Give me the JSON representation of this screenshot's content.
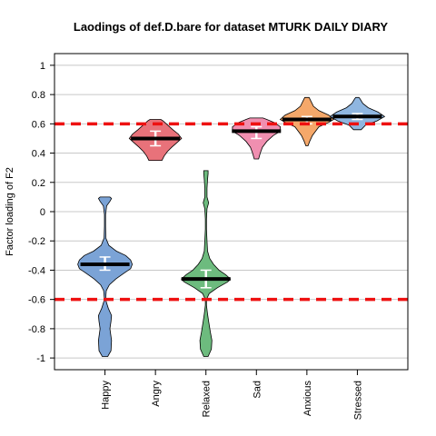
{
  "chart_data": {
    "type": "violin",
    "title": "Laodings of def.D.bare for dataset MTURK DAILY DIARY",
    "xlabel": "",
    "ylabel": "Factor loading of F2",
    "ylim": [
      -1.08,
      1.08
    ],
    "yticks": [
      "-1",
      "-0.8",
      "-0.6",
      "-0.4",
      "-0.2",
      "0",
      "0.2",
      "0.4",
      "0.6",
      "0.8",
      "1"
    ],
    "grid": true,
    "reference_lines": [
      0.6,
      -0.6
    ],
    "reference_line_color": "#ee1111",
    "categories": [
      "Happy",
      "Angry",
      "Relaxed",
      "Sad",
      "Anxious",
      "Stressed"
    ],
    "series": [
      {
        "category": "Happy",
        "color": "#7ba3d6",
        "median": -0.36,
        "q1": -0.4,
        "q3": -0.31,
        "min": -0.99,
        "max": 0.1,
        "profile": [
          [
            -0.99,
            0.25
          ],
          [
            -0.95,
            0.55
          ],
          [
            -0.88,
            0.6
          ],
          [
            -0.8,
            0.45
          ],
          [
            -0.75,
            0.55
          ],
          [
            -0.71,
            0.6
          ],
          [
            -0.66,
            0.3
          ],
          [
            -0.6,
            0.05
          ],
          [
            -0.54,
            0.12
          ],
          [
            -0.5,
            0.4
          ],
          [
            -0.46,
            1.0
          ],
          [
            -0.42,
            1.75
          ],
          [
            -0.39,
            2.35
          ],
          [
            -0.36,
            2.5
          ],
          [
            -0.33,
            2.35
          ],
          [
            -0.3,
            1.9
          ],
          [
            -0.27,
            1.05
          ],
          [
            -0.23,
            0.35
          ],
          [
            -0.18,
            0.08
          ],
          [
            -0.1,
            0.05
          ],
          [
            -0.02,
            0.05
          ],
          [
            0.04,
            0.15
          ],
          [
            0.07,
            0.45
          ],
          [
            0.09,
            0.6
          ],
          [
            0.1,
            0.45
          ]
        ]
      },
      {
        "category": "Angry",
        "color": "#e8727a",
        "median": 0.5,
        "q1": 0.45,
        "q3": 0.55,
        "min": 0.35,
        "max": 0.63,
        "profile": [
          [
            0.35,
            0.6
          ],
          [
            0.38,
            0.8
          ],
          [
            0.41,
            1.1
          ],
          [
            0.44,
            1.5
          ],
          [
            0.47,
            1.95
          ],
          [
            0.5,
            2.4
          ],
          [
            0.53,
            2.1
          ],
          [
            0.56,
            1.6
          ],
          [
            0.59,
            1.15
          ],
          [
            0.62,
            0.7
          ],
          [
            0.63,
            0.5
          ]
        ]
      },
      {
        "category": "Relaxed",
        "color": "#6dbb7e",
        "median": -0.46,
        "q1": -0.52,
        "q3": -0.4,
        "min": -0.99,
        "max": 0.28,
        "profile": [
          [
            -0.99,
            0.2
          ],
          [
            -0.94,
            0.5
          ],
          [
            -0.88,
            0.55
          ],
          [
            -0.82,
            0.4
          ],
          [
            -0.75,
            0.25
          ],
          [
            -0.7,
            0.15
          ],
          [
            -0.64,
            0.05
          ],
          [
            -0.6,
            0.05
          ],
          [
            -0.56,
            0.3
          ],
          [
            -0.52,
            1.05
          ],
          [
            -0.48,
            2.0
          ],
          [
            -0.46,
            2.25
          ],
          [
            -0.43,
            1.8
          ],
          [
            -0.4,
            1.2
          ],
          [
            -0.36,
            0.7
          ],
          [
            -0.32,
            0.35
          ],
          [
            -0.27,
            0.15
          ],
          [
            -0.2,
            0.1
          ],
          [
            -0.12,
            0.05
          ],
          [
            -0.05,
            0.05
          ],
          [
            0.02,
            0.1
          ],
          [
            0.06,
            0.25
          ],
          [
            0.1,
            0.1
          ],
          [
            0.16,
            0.1
          ],
          [
            0.22,
            0.15
          ],
          [
            0.26,
            0.2
          ],
          [
            0.28,
            0.2
          ]
        ]
      },
      {
        "category": "Sad",
        "color": "#f08fb0",
        "median": 0.55,
        "q1": 0.5,
        "q3": 0.58,
        "min": 0.36,
        "max": 0.64,
        "profile": [
          [
            0.36,
            0.2
          ],
          [
            0.4,
            0.35
          ],
          [
            0.44,
            0.55
          ],
          [
            0.48,
            0.95
          ],
          [
            0.52,
            1.55
          ],
          [
            0.55,
            2.2
          ],
          [
            0.58,
            2.2
          ],
          [
            0.61,
            1.6
          ],
          [
            0.63,
            0.95
          ],
          [
            0.64,
            0.6
          ]
        ]
      },
      {
        "category": "Anxious",
        "color": "#f5a86a",
        "median": 0.63,
        "q1": 0.6,
        "q3": 0.65,
        "min": 0.45,
        "max": 0.78,
        "profile": [
          [
            0.45,
            0.1
          ],
          [
            0.48,
            0.25
          ],
          [
            0.52,
            0.5
          ],
          [
            0.55,
            0.8
          ],
          [
            0.58,
            1.1
          ],
          [
            0.61,
            2.0
          ],
          [
            0.63,
            2.45
          ],
          [
            0.66,
            2.0
          ],
          [
            0.69,
            1.1
          ],
          [
            0.72,
            0.6
          ],
          [
            0.75,
            0.4
          ],
          [
            0.78,
            0.2
          ]
        ]
      },
      {
        "category": "Stressed",
        "color": "#8fb6e0",
        "median": 0.65,
        "q1": 0.63,
        "q3": 0.67,
        "min": 0.56,
        "max": 0.78,
        "profile": [
          [
            0.56,
            0.35
          ],
          [
            0.59,
            0.75
          ],
          [
            0.62,
            1.8
          ],
          [
            0.65,
            2.5
          ],
          [
            0.68,
            1.9
          ],
          [
            0.71,
            1.0
          ],
          [
            0.74,
            0.5
          ],
          [
            0.77,
            0.25
          ],
          [
            0.78,
            0.15
          ]
        ]
      }
    ]
  }
}
